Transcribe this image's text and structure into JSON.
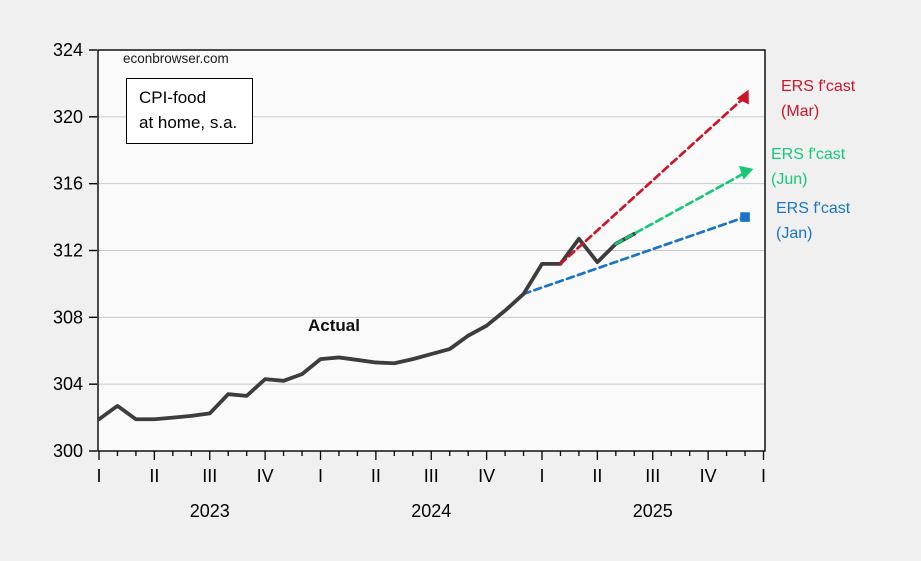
{
  "page": {
    "background": "#f0f0f0",
    "plot_background": "#fafafa",
    "gridline_color": "#c9c9c9",
    "frame_color": "#000000"
  },
  "watermark": "econbrowser.com",
  "title_box": {
    "line1": "CPI-food",
    "line2": "at home, s.a."
  },
  "labels": {
    "actual": "Actual",
    "forecasts": [
      {
        "id": "mar",
        "line1": "ERS f'cast",
        "line2": "(Mar)",
        "color": "#cc1428"
      },
      {
        "id": "jun",
        "line1": "ERS f'cast",
        "line2": "(Jun)",
        "color": "#17c878"
      },
      {
        "id": "jan",
        "line1": "ERS f'cast",
        "line2": "(Jan)",
        "color": "#1a73c8"
      }
    ]
  },
  "chart_data": {
    "type": "line",
    "title": "CPI-food at home, s.a.",
    "source": "econbrowser.com",
    "x_unit": "month",
    "x_start": "2023-01",
    "x_axis_end": "2026-01",
    "ylim": [
      300,
      324
    ],
    "y_ticks": [
      300,
      304,
      308,
      312,
      316,
      320,
      324
    ],
    "grid": "horizontal-only",
    "quarter_labels": [
      {
        "month": 0,
        "label": "I"
      },
      {
        "month": 3,
        "label": "II"
      },
      {
        "month": 6,
        "label": "III"
      },
      {
        "month": 9,
        "label": "IV"
      },
      {
        "month": 12,
        "label": "I"
      },
      {
        "month": 15,
        "label": "II"
      },
      {
        "month": 18,
        "label": "III"
      },
      {
        "month": 21,
        "label": "IV"
      },
      {
        "month": 24,
        "label": "I"
      },
      {
        "month": 27,
        "label": "II"
      },
      {
        "month": 30,
        "label": "III"
      },
      {
        "month": 33,
        "label": "IV"
      },
      {
        "month": 36,
        "label": "I"
      }
    ],
    "year_labels": [
      {
        "month": 6,
        "label": "2023"
      },
      {
        "month": 18,
        "label": "2024"
      },
      {
        "month": 30,
        "label": "2025"
      }
    ],
    "series": [
      {
        "key": "ers-fcast-jan",
        "name": "ERS f'cast (Jan)",
        "style": "dashed",
        "color": "#1a73c8",
        "width": 2.7,
        "marker": "square",
        "points": [
          {
            "month": 23,
            "value": 309.4
          },
          {
            "month": 35,
            "value": 314.0
          }
        ]
      },
      {
        "key": "actual",
        "name": "Actual",
        "style": "solid",
        "color": "#3d3d3d",
        "width": 3.8,
        "start_month": 0,
        "values": [
          301.9,
          302.7,
          301.9,
          301.9,
          302.0,
          302.1,
          302.25,
          303.4,
          303.3,
          304.3,
          304.2,
          304.6,
          305.5,
          305.6,
          305.45,
          305.3,
          305.25,
          305.5,
          305.8,
          306.1,
          306.9,
          307.5,
          308.4,
          309.4,
          311.2,
          311.2,
          312.7,
          311.3,
          312.4,
          313.0
        ]
      },
      {
        "key": "ers-fcast-jun",
        "name": "ERS f'cast (Jun)",
        "style": "dashed",
        "color": "#17c878",
        "width": 2.7,
        "marker": "triangle-down",
        "points": [
          {
            "month": 28,
            "value": 312.4
          },
          {
            "month": 35,
            "value": 316.65
          }
        ]
      },
      {
        "key": "ers-fcast-mar",
        "name": "ERS f'cast (Mar)",
        "style": "dashed",
        "color": "#cc1428",
        "width": 2.7,
        "marker": "triangle-up",
        "points": [
          {
            "month": 25,
            "value": 311.2
          },
          {
            "month": 35,
            "value": 321.2
          }
        ]
      }
    ]
  }
}
